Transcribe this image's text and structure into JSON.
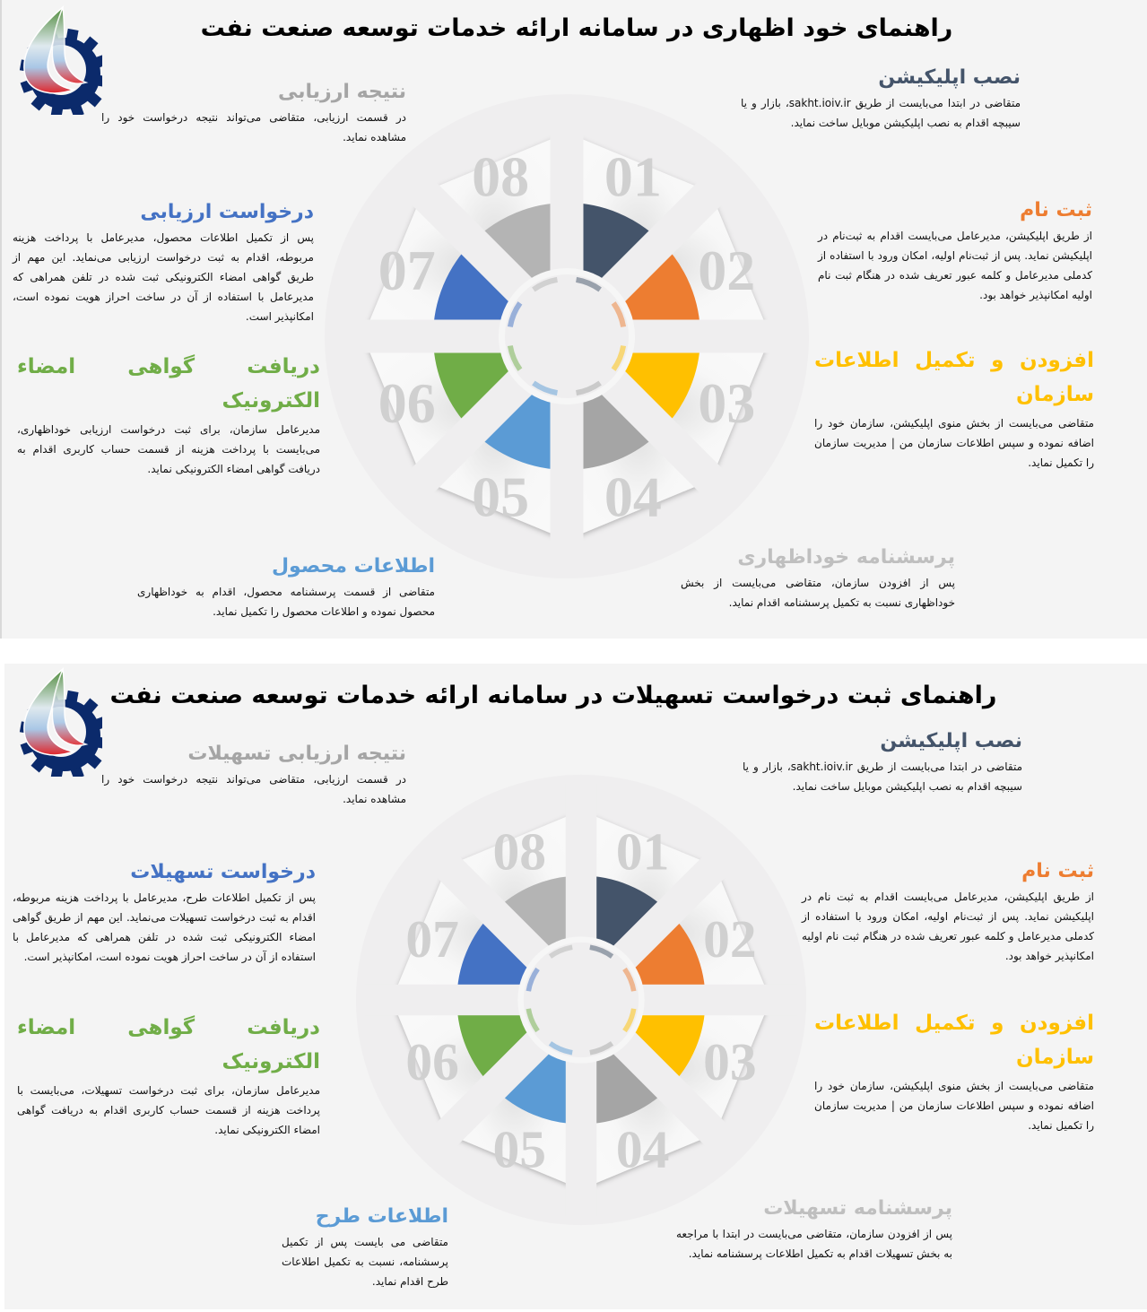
{
  "panels": [
    {
      "title": "راهنمای خود اظهاری در سامانه ارائه خدمات توسعه صنعت نفت",
      "steps": [
        {
          "number": "01",
          "title": "نصب اپلیکیشن",
          "body": "متقاضی  در ابتدا می‌بایست از طریق sakht.ioiv.ir، بازار و یا سیبچه اقدام به نصب اپلیکیشن موبایل ساخت نماید.",
          "color": "#44546a",
          "title_color": "#44546a"
        },
        {
          "number": "02",
          "title": "ثبت نام",
          "body": "از طریق اپلیکیشن، مدیرعامل می‌بایست اقدام به ثبت‌نام در اپلیکیشن نماید. پس از ثبت‌نام اولیه، امکان ورود  با استفاده از کدملی مدیرعامل و کلمه عبور تعریف شده در هنگام ثبت نام اولیه امکانپذیر خواهد بود.",
          "color": "#ed7d31",
          "title_color": "#ed7d31"
        },
        {
          "number": "03",
          "title": "افزودن  و  تکمیل اطلاعات سازمان",
          "body": "متقاضی می‌بایست از بخش منوی اپلیکیشن، سازمان خود را اضافه نموده و سپس اطلاعات سازمان من | مدیریت سازمان را تکمیل نماید.",
          "color": "#ffc000",
          "title_color": "#ffc000"
        },
        {
          "number": "04",
          "title": "پرسشنامه خوداظهاری",
          "body": "پس از افزودن سازمان، متقاضی می‌بایست از بخش خوداظهاری نسبت به تکمیل پرسشنامه اقدام نماید.",
          "color": "#a5a5a5",
          "title_color": "#bfbfbf"
        },
        {
          "number": "05",
          "title": "اطلاعات محصول",
          "body": "متقاضی از قسمت پرسشنامه محصول، اقدام به خوداظهاری محصول نموده و اطلاعات محصول را تکمیل نماید.",
          "color": "#5b9bd5",
          "title_color": "#5b9bd5"
        },
        {
          "number": "06",
          "title": "دریافت گواهی امضاء الکترونیک",
          "body": "مدیرعامل سازمان، برای ثبت درخواست ارزیابی خوداظهاری، می‌بایست با پرداخت هزینه از قسمت حساب کاربری اقدام به دریافت گواهی امضاء الکترونیکی نماید.",
          "color": "#70ad47",
          "title_color": "#70ad47"
        },
        {
          "number": "07",
          "title": "درخواست ارزیابی",
          "body": "پس از تکمیل اطلاعات محصول، مدیرعامل با پرداخت هزینه مربوطه، اقدام به ثبت درخواست ارزیابی می‌نماید. این مهم از طریق گواهی امضاء الکترونیکی ثبت شده در تلفن همراهی که مدیرعامل با استفاده از آن در ساخت احراز هویت نموده است، امکانپذیر است.",
          "color": "#4472c4",
          "title_color": "#4472c4"
        },
        {
          "number": "08",
          "title": "نتیجه ارزیابی",
          "body": "در قسمت ارزیابی، متقاضی می‌تواند نتیجه درخواست خود را مشاهده نماید.",
          "color": "#b4b4b4",
          "title_color": "#a5a5a5"
        }
      ]
    },
    {
      "title": "راهنمای ثبت درخواست تسهیلات در سامانه ارائه خدمات توسعه صنعت نفت",
      "steps": [
        {
          "number": "01",
          "title": "نصب اپلیکیشن",
          "body": "متقاضی  در ابتدا می‌بایست از طریق sakht.ioiv.ir، بازار و یا سیبچه اقدام به نصب اپلیکیشن موبایل ساخت نماید.",
          "color": "#44546a",
          "title_color": "#44546a"
        },
        {
          "number": "02",
          "title": "ثبت نام",
          "body": "از طریق اپلیکیشن، مدیرعامل می‌بایست اقدام به ثبت نام در اپلیکیشن نماید. پس از ثبت‌نام اولیه، امکان ورود  با استفاده از کدملی مدیرعامل و کلمه عبور تعریف شده در هنگام ثبت نام اولیه امکانپذیر خواهد بود.",
          "color": "#ed7d31",
          "title_color": "#ed7d31"
        },
        {
          "number": "03",
          "title": "افزودن  و  تکمیل اطلاعات سازمان",
          "body": "متقاضی می‌بایست از بخش منوی اپلیکیشن، سازمان خود را اضافه نموده و سپس اطلاعات سازمان من | مدیریت سازمان را تکمیل نماید.",
          "color": "#ffc000",
          "title_color": "#ffc000"
        },
        {
          "number": "04",
          "title": "پرسشنامه تسهیلات",
          "body": "پس از افزودن سازمان، متقاضی می‌بایست در ابتدا با مراجعه به بخش تسهیلات اقدام به تکمیل اطلاعات پرسشنامه نماید.",
          "color": "#a5a5a5",
          "title_color": "#bfbfbf"
        },
        {
          "number": "05",
          "title": "اطلاعات طرح",
          "body": "متقاضی می بایست پس از تکمیل پرسشنامه، نسبت به تکمیل اطلاعات طرح اقدام نماید.",
          "color": "#5b9bd5",
          "title_color": "#5b9bd5"
        },
        {
          "number": "06",
          "title": "دریافت گواهی امضاء الکترونیک",
          "body": "مدیرعامل سازمان، برای ثبت درخواست تسهیلات، می‌بایست با پرداخت هزینه از قسمت حساب کاربری اقدام به دریافت گواهی امضاء الکترونیکی نماید.",
          "color": "#70ad47",
          "title_color": "#70ad47"
        },
        {
          "number": "07",
          "title": "درخواست تسهیلات",
          "body": "پس از تکمیل اطلاعات طرح، مدیرعامل با پرداخت هزینه مربوطه، اقدام به ثبت درخواست تسهیلات می‌نماید. این مهم از طریق گواهی امضاء الکترونیکی ثبت شده در تلفن همراهی که مدیرعامل با استفاده از آن در ساخت احراز هویت نموده است، امکانپذیر است.",
          "color": "#4472c4",
          "title_color": "#4472c4"
        },
        {
          "number": "08",
          "title": "نتیجه ارزیابی تسهیلات",
          "body": "در قسمت ارزیابی، متقاضی می‌تواند نتیجه درخواست خود را مشاهده نماید.",
          "color": "#b4b4b4",
          "title_color": "#a5a5a5"
        }
      ]
    }
  ],
  "colors": {
    "wheel_ring": "#efeeef",
    "number_gray": "#d0d0d0",
    "logo_gear": "#0b2a6b"
  },
  "logo": {
    "icon": "oil-industry-gear-logo"
  }
}
